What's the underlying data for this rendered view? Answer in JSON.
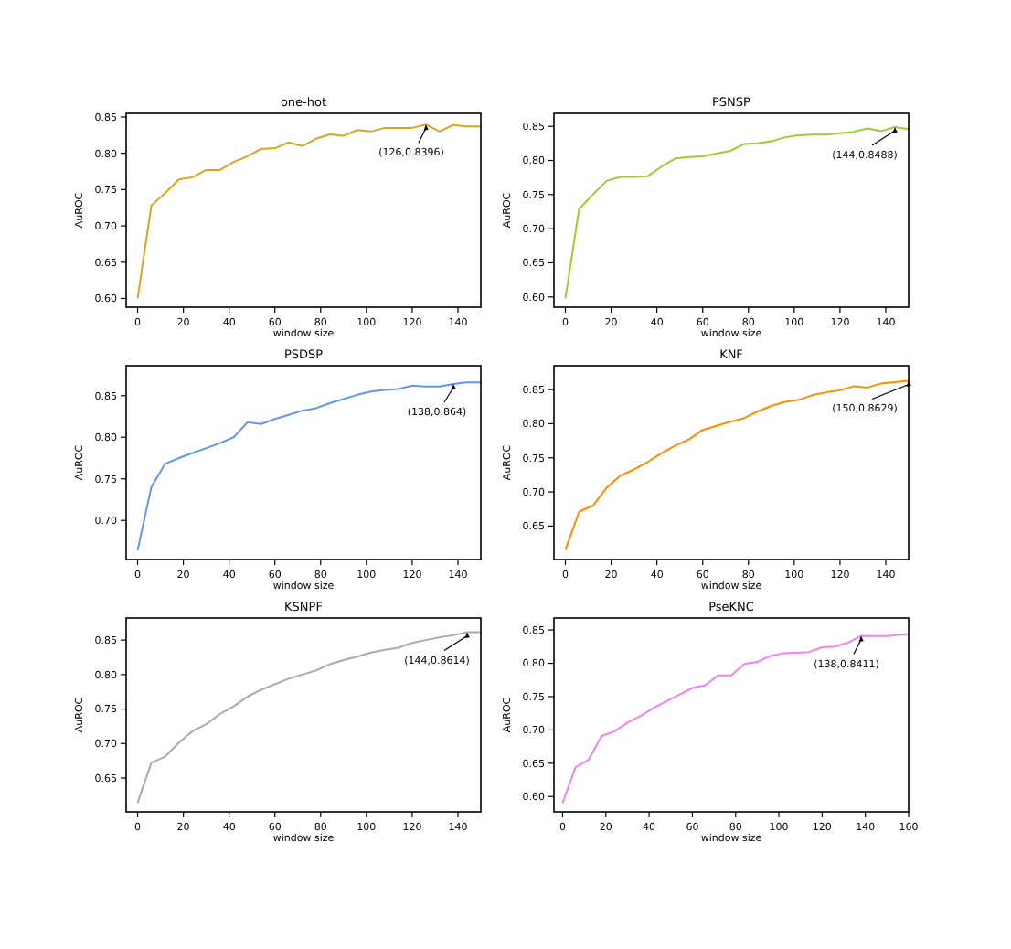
{
  "chart_data": [
    {
      "type": "line",
      "title": "one-hot",
      "xlabel": "window size",
      "ylabel": "AuROC",
      "xlim": [
        -5,
        150
      ],
      "xticks": [
        0,
        20,
        40,
        60,
        80,
        100,
        120,
        140
      ],
      "ylim": [
        0.588,
        0.855
      ],
      "yticks": [
        {
          "value": 0.6,
          "label": "0.60"
        },
        {
          "value": 0.65,
          "label": "0.65"
        },
        {
          "value": 0.7,
          "label": "0.70"
        },
        {
          "value": 0.75,
          "label": "0.75"
        },
        {
          "value": 0.8,
          "label": "0.80"
        },
        {
          "value": 0.85,
          "label": "0.85"
        }
      ],
      "x": [
        0,
        6,
        12,
        18,
        24,
        30,
        36,
        42,
        48,
        54,
        60,
        66,
        72,
        78,
        84,
        90,
        96,
        102,
        108,
        114,
        120,
        126,
        132,
        138,
        144,
        150
      ],
      "series": [
        {
          "color": "#daa520",
          "values": [
            0.6,
            0.728,
            0.745,
            0.764,
            0.767,
            0.777,
            0.777,
            0.788,
            0.796,
            0.806,
            0.807,
            0.815,
            0.81,
            0.82,
            0.826,
            0.824,
            0.832,
            0.83,
            0.835,
            0.835,
            0.835,
            0.8396,
            0.83,
            0.839,
            0.837,
            0.837
          ]
        }
      ],
      "annotations": [
        {
          "text": "(126,0.8396)",
          "x": 126,
          "y": 0.8396
        }
      ]
    },
    {
      "type": "line",
      "title": "PSNSP",
      "xlabel": "window size",
      "ylabel": "AuROC",
      "xlim": [
        -5,
        150
      ],
      "xticks": [
        0,
        20,
        40,
        60,
        80,
        100,
        120,
        140
      ],
      "ylim": [
        0.585,
        0.869
      ],
      "yticks": [
        {
          "value": 0.6,
          "label": "0.60"
        },
        {
          "value": 0.65,
          "label": "0.65"
        },
        {
          "value": 0.7,
          "label": "0.70"
        },
        {
          "value": 0.75,
          "label": "0.75"
        },
        {
          "value": 0.8,
          "label": "0.80"
        },
        {
          "value": 0.85,
          "label": "0.85"
        }
      ],
      "x": [
        0,
        6,
        12,
        18,
        24,
        30,
        36,
        42,
        48,
        54,
        60,
        66,
        72,
        78,
        84,
        90,
        96,
        102,
        108,
        114,
        120,
        126,
        132,
        138,
        144,
        150
      ],
      "series": [
        {
          "color": "#9acd32",
          "values": [
            0.598,
            0.729,
            0.75,
            0.77,
            0.776,
            0.776,
            0.777,
            0.791,
            0.803,
            0.805,
            0.806,
            0.81,
            0.814,
            0.824,
            0.825,
            0.828,
            0.834,
            0.837,
            0.838,
            0.838,
            0.84,
            0.842,
            0.847,
            0.843,
            0.8488,
            0.846
          ]
        }
      ],
      "annotations": [
        {
          "text": "(144,0.8488)",
          "x": 144,
          "y": 0.8488
        }
      ]
    },
    {
      "type": "line",
      "title": "PSDSP",
      "xlabel": "window size",
      "ylabel": "AuROC",
      "xlim": [
        -5,
        150
      ],
      "xticks": [
        0,
        20,
        40,
        60,
        80,
        100,
        120,
        140
      ],
      "ylim": [
        0.653,
        0.886
      ],
      "yticks": [
        {
          "value": 0.7,
          "label": "0.70"
        },
        {
          "value": 0.75,
          "label": "0.75"
        },
        {
          "value": 0.8,
          "label": "0.80"
        },
        {
          "value": 0.85,
          "label": "0.85"
        }
      ],
      "x": [
        0,
        6,
        12,
        18,
        24,
        30,
        36,
        42,
        48,
        54,
        60,
        66,
        72,
        78,
        84,
        90,
        96,
        102,
        108,
        114,
        120,
        126,
        132,
        138,
        144,
        150
      ],
      "series": [
        {
          "color": "#6495ed",
          "values": [
            0.664,
            0.74,
            0.768,
            0.775,
            0.781,
            0.787,
            0.793,
            0.8,
            0.818,
            0.816,
            0.822,
            0.827,
            0.832,
            0.835,
            0.841,
            0.846,
            0.851,
            0.855,
            0.857,
            0.858,
            0.862,
            0.861,
            0.861,
            0.864,
            0.866,
            0.866
          ]
        }
      ],
      "annotations": [
        {
          "text": "(138,0.864)",
          "x": 138,
          "y": 0.864
        }
      ]
    },
    {
      "type": "line",
      "title": "KNF",
      "xlabel": "window size",
      "ylabel": "AuROC",
      "xlim": [
        -5,
        150
      ],
      "xticks": [
        0,
        20,
        40,
        60,
        80,
        100,
        120,
        140
      ],
      "ylim": [
        0.601,
        0.885
      ],
      "yticks": [
        {
          "value": 0.65,
          "label": "0.65"
        },
        {
          "value": 0.7,
          "label": "0.70"
        },
        {
          "value": 0.75,
          "label": "0.75"
        },
        {
          "value": 0.8,
          "label": "0.80"
        },
        {
          "value": 0.85,
          "label": "0.85"
        }
      ],
      "x": [
        0,
        6,
        12,
        18,
        24,
        30,
        36,
        42,
        48,
        54,
        60,
        66,
        72,
        78,
        84,
        90,
        96,
        102,
        108,
        114,
        120,
        126,
        132,
        138,
        144,
        150
      ],
      "series": [
        {
          "color": "#ff8c00",
          "values": [
            0.615,
            0.671,
            0.68,
            0.706,
            0.724,
            0.733,
            0.744,
            0.757,
            0.768,
            0.777,
            0.791,
            0.797,
            0.803,
            0.808,
            0.818,
            0.826,
            0.832,
            0.835,
            0.842,
            0.846,
            0.849,
            0.855,
            0.853,
            0.859,
            0.861,
            0.8629
          ]
        }
      ],
      "annotations": [
        {
          "text": "(150,0.8629)",
          "x": 150,
          "y": 0.8629
        }
      ]
    },
    {
      "type": "line",
      "title": "KSNPF",
      "xlabel": "window size",
      "ylabel": "AuROC",
      "xlim": [
        -5,
        150
      ],
      "xticks": [
        0,
        20,
        40,
        60,
        80,
        100,
        120,
        140
      ],
      "ylim": [
        0.601,
        0.882
      ],
      "yticks": [
        {
          "value": 0.65,
          "label": "0.65"
        },
        {
          "value": 0.7,
          "label": "0.70"
        },
        {
          "value": 0.75,
          "label": "0.75"
        },
        {
          "value": 0.8,
          "label": "0.80"
        },
        {
          "value": 0.85,
          "label": "0.85"
        }
      ],
      "x": [
        0,
        6,
        12,
        18,
        24,
        30,
        36,
        42,
        48,
        54,
        60,
        66,
        72,
        78,
        84,
        90,
        96,
        102,
        108,
        114,
        120,
        126,
        132,
        138,
        144,
        150
      ],
      "series": [
        {
          "color": "#a9a9a9",
          "values": [
            0.614,
            0.672,
            0.681,
            0.701,
            0.718,
            0.728,
            0.743,
            0.754,
            0.768,
            0.778,
            0.786,
            0.794,
            0.8,
            0.806,
            0.815,
            0.821,
            0.826,
            0.832,
            0.836,
            0.839,
            0.846,
            0.85,
            0.854,
            0.857,
            0.8614,
            0.8614
          ]
        }
      ],
      "annotations": [
        {
          "text": "(144,0.8614)",
          "x": 144,
          "y": 0.8614
        }
      ]
    },
    {
      "type": "line",
      "title": "PseKNC",
      "xlabel": "window size",
      "ylabel": "AuROC",
      "xlim": [
        -4,
        160
      ],
      "xticks": [
        0,
        20,
        40,
        60,
        80,
        100,
        120,
        140,
        160
      ],
      "ylim": [
        0.577,
        0.868
      ],
      "yticks": [
        {
          "value": 0.6,
          "label": "0.60"
        },
        {
          "value": 0.65,
          "label": "0.65"
        },
        {
          "value": 0.7,
          "label": "0.70"
        },
        {
          "value": 0.75,
          "label": "0.75"
        },
        {
          "value": 0.8,
          "label": "0.80"
        },
        {
          "value": 0.85,
          "label": "0.85"
        }
      ],
      "x": [
        0,
        6,
        12,
        18,
        24,
        30,
        36,
        42,
        48,
        54,
        60,
        66,
        72,
        78,
        84,
        90,
        96,
        102,
        108,
        114,
        120,
        126,
        132,
        138,
        144,
        150,
        156,
        160
      ],
      "series": [
        {
          "color": "#ee82ee",
          "values": [
            0.59,
            0.644,
            0.655,
            0.691,
            0.698,
            0.711,
            0.721,
            0.733,
            0.743,
            0.753,
            0.763,
            0.767,
            0.782,
            0.782,
            0.799,
            0.802,
            0.811,
            0.815,
            0.816,
            0.817,
            0.824,
            0.825,
            0.831,
            0.8411,
            0.841,
            0.841,
            0.843,
            0.844
          ]
        }
      ],
      "annotations": [
        {
          "text": "(138,0.8411)",
          "x": 138,
          "y": 0.8411
        }
      ]
    }
  ]
}
